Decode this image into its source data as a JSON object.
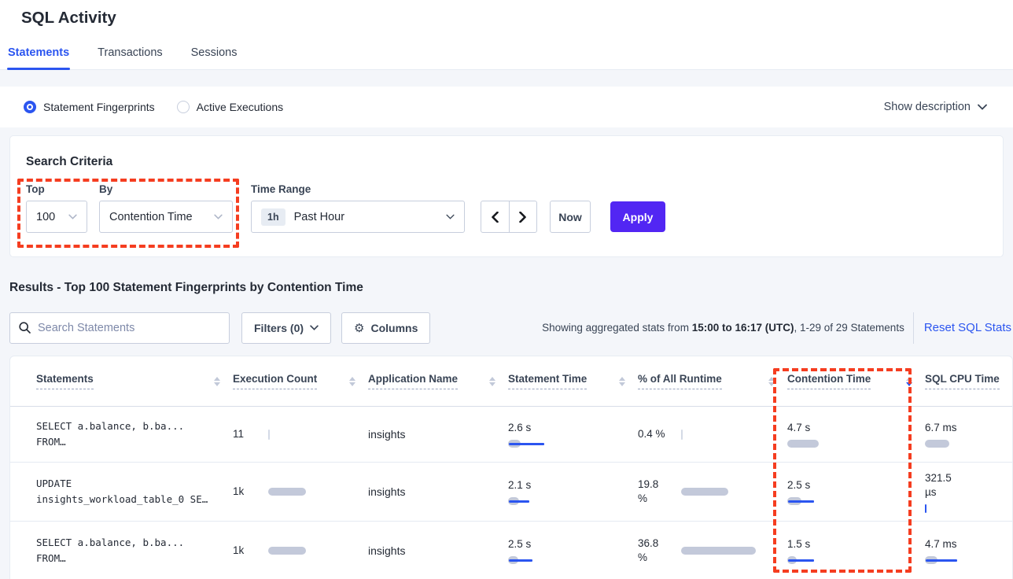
{
  "page": {
    "title": "SQL Activity"
  },
  "tabs": [
    {
      "label": "Statements",
      "active": true
    },
    {
      "label": "Transactions",
      "active": false
    },
    {
      "label": "Sessions",
      "active": false
    }
  ],
  "view_toggle": {
    "options": [
      {
        "label": "Statement Fingerprints",
        "selected": true
      },
      {
        "label": "Active Executions",
        "selected": false
      }
    ],
    "show_description_label": "Show description"
  },
  "search_criteria": {
    "heading": "Search Criteria",
    "top": {
      "label": "Top",
      "value": "100"
    },
    "by": {
      "label": "By",
      "value": "Contention Time"
    },
    "time_range": {
      "label": "Time Range",
      "badge": "1h",
      "value": "Past Hour"
    },
    "now_label": "Now",
    "apply_label": "Apply"
  },
  "results": {
    "heading": "Results - Top 100 Statement Fingerprints by Contention Time",
    "search_placeholder": "Search Statements",
    "filters_label": "Filters (0)",
    "columns_label": "Columns",
    "stats_prefix": "Showing aggregated stats from ",
    "stats_bold": "15:00 to 16:17 (UTC)",
    "stats_suffix": ", 1-29 of 29 Statements",
    "reset_label": "Reset SQL Stats"
  },
  "table": {
    "headers": [
      {
        "label": "Statements",
        "sort": "none"
      },
      {
        "label": "Execution Count",
        "sort": "none"
      },
      {
        "label": "Application Name",
        "sort": "none"
      },
      {
        "label": "Statement Time",
        "sort": "none"
      },
      {
        "label": "% of All Runtime",
        "sort": "none"
      },
      {
        "label": "Contention Time",
        "sort": "desc"
      },
      {
        "label": "SQL CPU Time",
        "sort": "hidden"
      }
    ],
    "rows": [
      {
        "statement_lines": [
          "SELECT a.balance, b.ba...",
          "FROM…"
        ],
        "execution_count": "11",
        "execution_bar": {
          "sliver": true
        },
        "application_name": "insights",
        "statement_time": "2.6 s",
        "statement_time_bar": {
          "gray": 16,
          "blue": 45
        },
        "runtime_lines": [
          "0.4 %"
        ],
        "runtime_bar": {
          "sliver": true
        },
        "contention_time": "4.7 s",
        "contention_bar": {
          "gray": 40,
          "blue": 0
        },
        "cpu_lines": [
          "6.7 ms"
        ],
        "cpu_bar": {
          "gray": 31,
          "blue": 0
        }
      },
      {
        "statement_lines": [
          "UPDATE",
          "insights_workload_table_0 SE…"
        ],
        "execution_count": "1k",
        "execution_bar": {
          "gray": 48
        },
        "application_name": "insights",
        "statement_time": "2.1 s",
        "statement_time_bar": {
          "gray": 14,
          "blue": 26
        },
        "runtime_lines": [
          "19.8",
          "%"
        ],
        "runtime_bar": {
          "gray": 60
        },
        "contention_time": "2.5 s",
        "contention_bar": {
          "gray": 18,
          "blue": 33
        },
        "cpu_lines": [
          "321.5",
          "µs"
        ],
        "cpu_bar": {
          "tick": true
        }
      },
      {
        "statement_lines": [
          "SELECT a.balance, b.ba...",
          "FROM…"
        ],
        "execution_count": "1k",
        "execution_bar": {
          "gray": 48
        },
        "application_name": "insights",
        "statement_time": "2.5 s",
        "statement_time_bar": {
          "gray": 13,
          "blue": 30
        },
        "runtime_lines": [
          "36.8",
          "%"
        ],
        "runtime_bar": {
          "gray": 95
        },
        "contention_time": "1.5 s",
        "contention_bar": {
          "gray": 12,
          "blue": 33
        },
        "cpu_lines": [
          "4.7 ms"
        ],
        "cpu_bar": {
          "gray": 16,
          "blue": 40
        }
      }
    ]
  },
  "colors": {
    "accent_blue": "#2b55f0",
    "apply_purple": "#5226f3",
    "highlight_red": "#f53d20",
    "bar_gray": "#c3c9da",
    "bar_blue": "#2b55f0"
  }
}
